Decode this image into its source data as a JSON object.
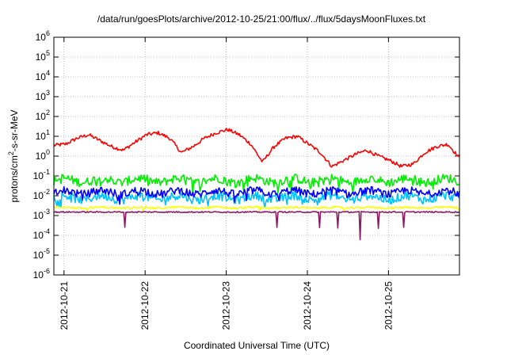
{
  "chart_data": {
    "type": "line",
    "title": "/data/run/goesPlots/archive/2012-10-25/21:00/flux/../flux/5daysMoonFluxes.txt",
    "xlabel": "Coordinated Universal Time (UTC)",
    "ylabel": {
      "base": "protons/cm",
      "sup": "2",
      "rest": "-s-sr-MeV"
    },
    "y_scale": "log",
    "ylim_exp": [
      -6,
      6
    ],
    "y_ticks": [
      {
        "base": "10",
        "exp": "6"
      },
      {
        "base": "10",
        "exp": "5"
      },
      {
        "base": "10",
        "exp": "4"
      },
      {
        "base": "10",
        "exp": "3"
      },
      {
        "base": "10",
        "exp": "2"
      },
      {
        "base": "10",
        "exp": "1"
      },
      {
        "base": "10",
        "exp": "0"
      },
      {
        "base": "10",
        "exp": "-1"
      },
      {
        "base": "10",
        "exp": "-2"
      },
      {
        "base": "10",
        "exp": "-3"
      },
      {
        "base": "10",
        "exp": "-4"
      },
      {
        "base": "10",
        "exp": "-5"
      },
      {
        "base": "10",
        "exp": "-6"
      }
    ],
    "x_ticks": [
      "2012-10-21",
      "2012-10-22",
      "2012-10-23",
      "2012-10-24",
      "2012-10-25"
    ],
    "x_range": [
      "2012-10-20 21:00",
      "2012-10-25 21:00"
    ],
    "grid": true,
    "series": [
      {
        "color": "#ff0000",
        "approx_levels": [
          3.5,
          4,
          8,
          12,
          6,
          3,
          2,
          5,
          12,
          15,
          8,
          1.5,
          3,
          8,
          15,
          22,
          12,
          4,
          0.5,
          3,
          8,
          10,
          4,
          1.5,
          0.3,
          0.6,
          1.2,
          2,
          1,
          0.6,
          0.3,
          0.4,
          1.5,
          3,
          4,
          0.8
        ]
      },
      {
        "color": "#00ee00",
        "approx_level": 0.06
      },
      {
        "color": "#0000ff",
        "approx_level": 0.015
      },
      {
        "color": "#00c0ff",
        "approx_level": 0.008
      },
      {
        "color": "#ffff00",
        "approx_level": 0.0025
      },
      {
        "color": "#8b1c62",
        "approx_level": 0.0015
      }
    ]
  }
}
